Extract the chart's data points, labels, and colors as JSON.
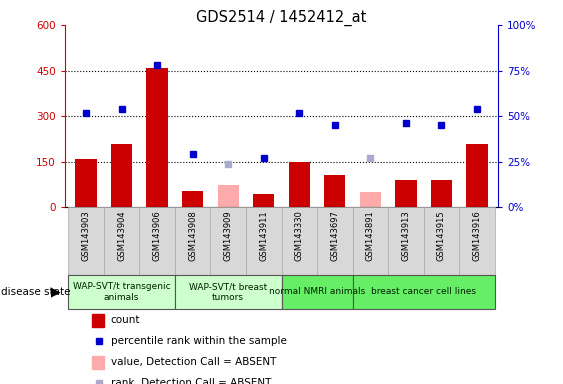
{
  "title": "GDS2514 / 1452412_at",
  "samples": [
    "GSM143903",
    "GSM143904",
    "GSM143906",
    "GSM143908",
    "GSM143909",
    "GSM143911",
    "GSM143330",
    "GSM143697",
    "GSM143891",
    "GSM143913",
    "GSM143915",
    "GSM143916"
  ],
  "count": [
    160,
    210,
    460,
    55,
    null,
    45,
    148,
    105,
    null,
    90,
    90,
    210
  ],
  "count_absent": [
    null,
    null,
    null,
    null,
    75,
    null,
    null,
    null,
    50,
    null,
    null,
    null
  ],
  "percentile_pct": [
    52,
    54,
    78,
    29,
    null,
    27,
    52,
    45,
    null,
    46,
    45,
    54
  ],
  "percentile_absent_pct": [
    null,
    null,
    null,
    null,
    24,
    null,
    null,
    null,
    27,
    null,
    null,
    null
  ],
  "groups": [
    {
      "label": "WAP-SVT/t transgenic\nanimals",
      "start": 0,
      "end": 3,
      "color": "#ccffcc"
    },
    {
      "label": "WAP-SVT/t breast\ntumors",
      "start": 3,
      "end": 6,
      "color": "#ccffcc"
    },
    {
      "label": "normal NMRI animals",
      "start": 6,
      "end": 8,
      "color": "#66ee66"
    },
    {
      "label": "breast cancer cell lines",
      "start": 8,
      "end": 12,
      "color": "#66ee66"
    }
  ],
  "ylim_left": [
    0,
    600
  ],
  "ylim_right": [
    0,
    100
  ],
  "yticks_left": [
    0,
    150,
    300,
    450,
    600
  ],
  "yticks_right": [
    0,
    25,
    50,
    75,
    100
  ],
  "bar_color": "#cc0000",
  "bar_absent_color": "#ffaaaa",
  "dot_color": "#0000cc",
  "dot_absent_color": "#aaaacc",
  "left_axis_color": "#cc0000",
  "right_axis_color": "#0000cc",
  "grid_yticks": [
    150,
    300,
    450
  ]
}
